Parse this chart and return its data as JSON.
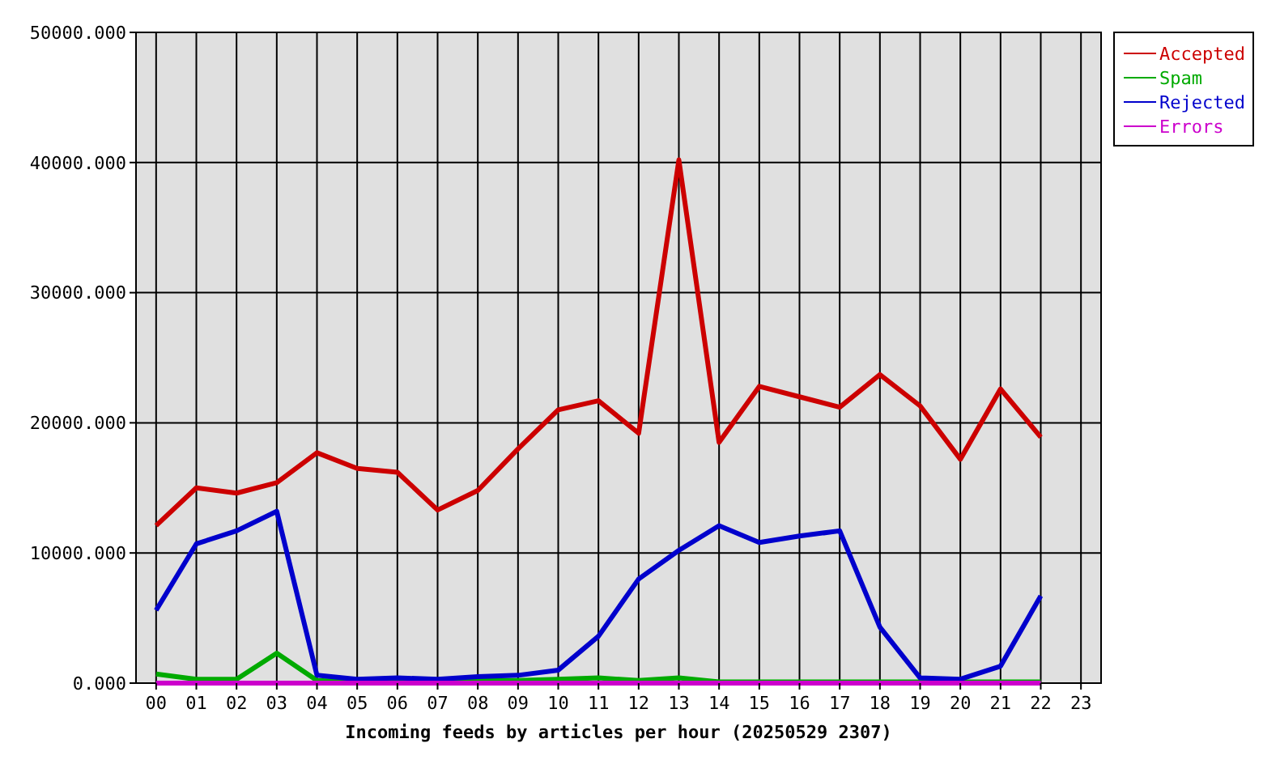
{
  "chart_data": {
    "type": "line",
    "xlabel": "Incoming feeds by articles per hour (20250529 2307)",
    "categories": [
      "00",
      "01",
      "02",
      "03",
      "04",
      "05",
      "06",
      "07",
      "08",
      "09",
      "10",
      "11",
      "12",
      "13",
      "14",
      "15",
      "16",
      "17",
      "18",
      "19",
      "20",
      "21",
      "22",
      "23"
    ],
    "series": [
      {
        "name": "Accepted",
        "color": "#cc0000",
        "values": [
          12100,
          15000,
          14600,
          15400,
          17700,
          16500,
          16200,
          13300,
          14800,
          18000,
          21000,
          21700,
          19200,
          40200,
          18500,
          22800,
          22000,
          21200,
          23700,
          21300,
          17200,
          22600,
          18900,
          null
        ]
      },
      {
        "name": "Spam",
        "color": "#00aa00",
        "values": [
          700,
          300,
          300,
          2300,
          200,
          100,
          100,
          100,
          200,
          200,
          300,
          400,
          200,
          400,
          100,
          100,
          100,
          100,
          100,
          100,
          100,
          100,
          100,
          null
        ]
      },
      {
        "name": "Rejected",
        "color": "#0000cc",
        "values": [
          5600,
          10700,
          11700,
          13200,
          600,
          300,
          400,
          300,
          500,
          600,
          1000,
          3600,
          8000,
          10200,
          12100,
          10800,
          11300,
          11700,
          4300,
          400,
          300,
          1300,
          6700,
          null
        ]
      },
      {
        "name": "Errors",
        "color": "#cc00cc",
        "values": [
          0,
          0,
          0,
          0,
          0,
          0,
          0,
          0,
          0,
          0,
          0,
          0,
          0,
          0,
          0,
          0,
          0,
          0,
          0,
          0,
          0,
          0,
          0,
          null
        ]
      }
    ],
    "ylim": [
      0,
      50000
    ],
    "yticks": [
      {
        "value": 0,
        "label": "0.000"
      },
      {
        "value": 10000,
        "label": "10000.000"
      },
      {
        "value": 20000,
        "label": "20000.000"
      },
      {
        "value": 30000,
        "label": "30000.000"
      },
      {
        "value": 40000,
        "label": "40000.000"
      },
      {
        "value": 50000,
        "label": "50000.000"
      }
    ],
    "grid": true,
    "legend": "top right",
    "line_style": "solid"
  }
}
